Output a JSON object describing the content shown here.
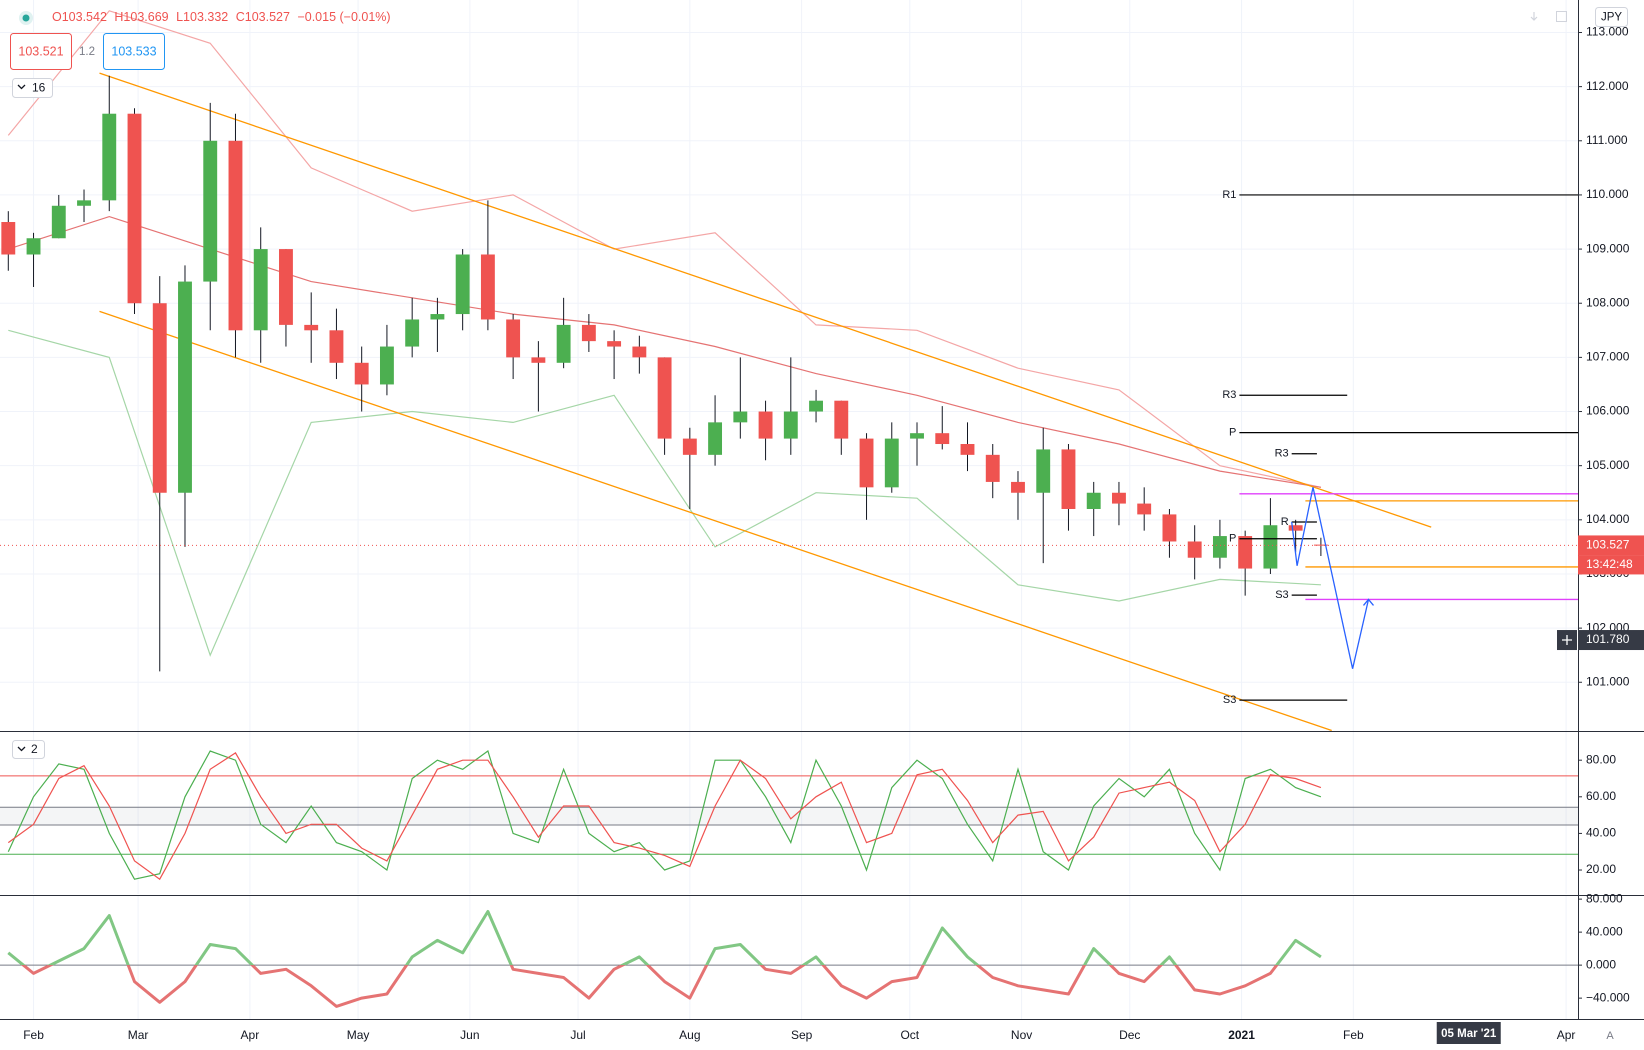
{
  "legend": {
    "open": "O103.542",
    "high": "H103.669",
    "low": "L103.332",
    "close": "C103.527",
    "change": "−0.015 (−0.01%)"
  },
  "sell_price": "103.521",
  "spread": "1.2",
  "buy_price": "103.533",
  "currency": "JPY",
  "scale_mode": "A",
  "chart_data": [
    {
      "type": "candlestick",
      "indicator_count": 16,
      "up_color": "#4caf50",
      "down_color": "#ef5350",
      "x": [
        24,
        31,
        38,
        45,
        52,
        59,
        66,
        73,
        80,
        87,
        94,
        101,
        108,
        115,
        122,
        129,
        136,
        143,
        150,
        157,
        164,
        171,
        178,
        185,
        192,
        199,
        206,
        213,
        220,
        227,
        234,
        241,
        248,
        255,
        262,
        269,
        276,
        283,
        290,
        297,
        304,
        311,
        318,
        325,
        332,
        339,
        346,
        353,
        360,
        367,
        374,
        381,
        388
      ],
      "open": [
        109.5,
        108.9,
        109.2,
        109.8,
        109.9,
        111.5,
        108.0,
        104.5,
        108.4,
        111.0,
        107.5,
        109.0,
        107.6,
        107.5,
        106.9,
        106.5,
        107.2,
        107.7,
        107.8,
        108.9,
        107.7,
        107.0,
        106.9,
        107.6,
        107.3,
        107.2,
        107.0,
        105.5,
        105.2,
        105.8,
        106.0,
        105.5,
        106.0,
        106.2,
        105.5,
        104.6,
        105.5,
        105.6,
        105.4,
        105.2,
        104.7,
        104.5,
        105.3,
        104.2,
        104.5,
        104.3,
        104.1,
        103.6,
        103.3,
        103.7,
        103.1,
        103.9,
        103.542
      ],
      "high": [
        109.7,
        109.3,
        110.0,
        110.1,
        112.2,
        111.6,
        108.5,
        108.7,
        111.7,
        111.5,
        109.4,
        109.0,
        108.2,
        107.9,
        107.2,
        107.6,
        108.1,
        108.1,
        109.0,
        109.9,
        107.8,
        107.3,
        108.1,
        107.8,
        107.5,
        107.4,
        107.0,
        105.7,
        106.3,
        107.0,
        106.2,
        107.0,
        106.4,
        106.2,
        105.6,
        105.8,
        105.8,
        106.1,
        105.8,
        105.4,
        104.9,
        105.7,
        105.4,
        104.7,
        104.7,
        104.6,
        104.2,
        103.9,
        104.0,
        103.8,
        104.4,
        104.0,
        103.669
      ],
      "low": [
        108.6,
        108.3,
        109.2,
        109.5,
        109.7,
        107.8,
        101.2,
        103.5,
        107.5,
        107.0,
        106.9,
        107.2,
        106.9,
        106.6,
        106.0,
        106.3,
        107.0,
        107.1,
        107.5,
        107.5,
        106.6,
        106.0,
        106.8,
        107.1,
        106.6,
        106.7,
        105.2,
        104.2,
        105.0,
        105.5,
        105.1,
        105.2,
        105.8,
        105.2,
        104.0,
        104.5,
        105.0,
        105.3,
        104.9,
        104.4,
        104.0,
        103.2,
        103.8,
        103.7,
        103.9,
        103.8,
        103.3,
        102.9,
        103.1,
        102.6,
        103.0,
        103.4,
        103.332
      ],
      "close": [
        108.9,
        109.2,
        109.8,
        109.9,
        111.5,
        108.0,
        104.5,
        108.4,
        111.0,
        107.5,
        109.0,
        107.6,
        107.5,
        106.9,
        106.5,
        107.2,
        107.7,
        107.8,
        108.9,
        107.7,
        107.0,
        106.9,
        107.6,
        107.3,
        107.2,
        107.0,
        105.5,
        105.2,
        105.8,
        106.0,
        105.5,
        106.0,
        106.2,
        105.5,
        104.6,
        105.5,
        105.6,
        105.4,
        105.2,
        104.7,
        104.5,
        105.3,
        104.2,
        104.5,
        104.3,
        104.1,
        103.6,
        103.3,
        103.7,
        103.1,
        103.9,
        103.8,
        103.527
      ],
      "xlim": [
        21.7,
        459.3
      ],
      "xticks": [
        {
          "value": 31,
          "label": "Feb"
        },
        {
          "value": 60,
          "label": "Mar"
        },
        {
          "value": 91,
          "label": "Apr"
        },
        {
          "value": 121,
          "label": "May"
        },
        {
          "value": 152,
          "label": "Jun"
        },
        {
          "value": 182,
          "label": "Jul"
        },
        {
          "value": 213,
          "label": "Aug"
        },
        {
          "value": 244,
          "label": "Sep"
        },
        {
          "value": 274,
          "label": "Oct"
        },
        {
          "value": 305,
          "label": "Nov"
        },
        {
          "value": 335,
          "label": "Dec"
        },
        {
          "value": 366,
          "label": "2021"
        },
        {
          "value": 397,
          "label": "Feb"
        },
        {
          "value": 456,
          "label": "Apr"
        }
      ],
      "highlight_tick": {
        "value": 429,
        "label": "05 Mar '21"
      },
      "ylim": [
        100.1,
        113.6
      ],
      "yticks": [
        {
          "value": 101,
          "label": "101.000"
        },
        {
          "value": 102,
          "label": "102.000"
        },
        {
          "value": 103,
          "label": "103.000"
        },
        {
          "value": 104,
          "label": "104.000"
        },
        {
          "value": 105,
          "label": "105.000"
        },
        {
          "value": 106,
          "label": "106.000"
        },
        {
          "value": 107,
          "label": "107.000"
        },
        {
          "value": 108,
          "label": "108.000"
        },
        {
          "value": 109,
          "label": "109.000"
        },
        {
          "value": 110,
          "label": "110.000"
        },
        {
          "value": 111,
          "label": "111.000"
        },
        {
          "value": 112,
          "label": "112.000"
        },
        {
          "value": 113,
          "label": "113.000"
        }
      ],
      "grid": true,
      "overlays": [
        {
          "color": "#f4a6a6",
          "x": [
            24,
            52,
            80,
            108,
            136,
            164,
            192,
            220,
            248,
            276,
            304,
            332,
            360,
            388
          ],
          "values": [
            111.1,
            113.4,
            112.8,
            110.5,
            109.7,
            110.0,
            109.0,
            109.3,
            107.6,
            107.5,
            106.8,
            106.4,
            105.0,
            104.6
          ]
        },
        {
          "color": "#e57373",
          "x": [
            24,
            52,
            80,
            108,
            136,
            164,
            192,
            220,
            248,
            276,
            304,
            332,
            360,
            388
          ],
          "values": [
            109.0,
            109.6,
            109.0,
            108.4,
            108.1,
            107.8,
            107.6,
            107.2,
            106.7,
            106.3,
            105.8,
            105.4,
            104.9,
            104.6
          ]
        },
        {
          "color": "#a5d6a7",
          "x": [
            24,
            52,
            80,
            108,
            136,
            164,
            192,
            220,
            248,
            276,
            304,
            332,
            360,
            388
          ],
          "values": [
            107.5,
            107.0,
            101.5,
            105.8,
            106.0,
            105.8,
            106.3,
            103.5,
            104.5,
            104.4,
            102.8,
            102.5,
            102.9,
            102.8
          ]
        }
      ],
      "channel_color": "#ff9800",
      "channel": [
        {
          "x": [
            49.3,
            418.6
          ],
          "values": [
            112.25,
            103.865
          ]
        },
        {
          "x": [
            49.3,
            391.0
          ],
          "values": [
            107.85,
            100.11
          ]
        }
      ],
      "level_color": "#000000",
      "levels": [
        {
          "label": "R1",
          "value": 110.0,
          "x": [
            365.4,
            459.3
          ]
        },
        {
          "label": "R3",
          "value": 106.3,
          "x": [
            365.4,
            395.3
          ]
        },
        {
          "label": "P",
          "value": 105.61,
          "x": [
            365.4,
            459.3
          ]
        },
        {
          "label": "R3",
          "value": 105.22,
          "x": [
            379.9,
            386.9
          ]
        },
        {
          "label": "R",
          "value": 103.96,
          "x": [
            379.9,
            386.9
          ]
        },
        {
          "label": "P",
          "value": 103.65,
          "x": [
            365.4,
            386.9
          ]
        },
        {
          "label": "S3",
          "value": 102.61,
          "x": [
            379.9,
            386.9
          ]
        },
        {
          "label": "S3",
          "value": 100.67,
          "x": [
            365.4,
            395.3
          ]
        }
      ],
      "zones": [
        {
          "color": "#e040fb",
          "value": 104.48,
          "x": [
            365.4,
            459.3
          ]
        },
        {
          "color": "#ff9800",
          "value": 104.35,
          "x": [
            383.7,
            459.3
          ]
        },
        {
          "color": "#ff9800",
          "value": 103.13,
          "x": [
            383.7,
            459.3
          ]
        },
        {
          "color": "#e040fb",
          "value": 102.53,
          "x": [
            383.7,
            459.3
          ]
        }
      ],
      "projection": {
        "color": "#2962ff",
        "x": [
          379.9,
          381.4,
          385.8,
          396.8,
          401.2
        ],
        "values": [
          103.96,
          103.15,
          104.6,
          101.25,
          102.53
        ]
      },
      "last_price": 103.527,
      "last_price_color": "#ef5350",
      "countdown": "13:42:48",
      "crosshair_price": {
        "value": 101.78,
        "label": "101.780"
      }
    },
    {
      "type": "line",
      "indicator_count": 2,
      "x": [
        24,
        31,
        38,
        45,
        52,
        59,
        66,
        73,
        80,
        87,
        94,
        101,
        108,
        115,
        122,
        129,
        136,
        143,
        150,
        157,
        164,
        171,
        178,
        185,
        192,
        199,
        206,
        213,
        220,
        227,
        234,
        241,
        248,
        255,
        262,
        269,
        276,
        283,
        290,
        297,
        304,
        311,
        318,
        325,
        332,
        339,
        346,
        353,
        360,
        367,
        374,
        381,
        388
      ],
      "xlim": [
        21.7,
        459.3
      ],
      "ylim": [
        6.9,
        95.4
      ],
      "yticks": [
        {
          "value": 20,
          "label": "20.00"
        },
        {
          "value": 40,
          "label": "40.00"
        },
        {
          "value": 60,
          "label": "60.00"
        },
        {
          "value": 80,
          "label": "80.00"
        }
      ],
      "levels": [
        {
          "value": 71.4,
          "color": "#ef5350"
        },
        {
          "value": 54.3,
          "color": "#787b86"
        },
        {
          "value": 44.6,
          "color": "#787b86"
        },
        {
          "value": 28.6,
          "color": "#4caf50"
        }
      ],
      "series": [
        {
          "color": "#4caf50",
          "values": [
            30,
            60,
            78,
            75,
            40,
            15,
            18,
            60,
            85,
            80,
            45,
            35,
            55,
            35,
            30,
            20,
            70,
            80,
            75,
            85,
            40,
            35,
            75,
            40,
            30,
            35,
            20,
            25,
            80,
            80,
            60,
            35,
            80,
            55,
            20,
            65,
            80,
            70,
            45,
            25,
            75,
            30,
            20,
            55,
            70,
            60,
            75,
            40,
            20,
            70,
            75,
            65,
            60
          ]
        },
        {
          "color": "#ef5350",
          "values": [
            35,
            45,
            70,
            77,
            55,
            25,
            15,
            40,
            75,
            84,
            60,
            40,
            45,
            45,
            32,
            25,
            50,
            75,
            80,
            80,
            60,
            38,
            55,
            55,
            35,
            32,
            28,
            22,
            55,
            80,
            70,
            48,
            60,
            68,
            35,
            40,
            72,
            75,
            58,
            35,
            50,
            52,
            25,
            38,
            62,
            65,
            68,
            58,
            30,
            45,
            72,
            70,
            65
          ]
        }
      ]
    },
    {
      "type": "oscillator",
      "x": [
        24,
        31,
        38,
        45,
        52,
        59,
        66,
        73,
        80,
        87,
        94,
        101,
        108,
        115,
        122,
        129,
        136,
        143,
        150,
        157,
        164,
        171,
        178,
        185,
        192,
        199,
        206,
        213,
        220,
        227,
        234,
        241,
        248,
        255,
        262,
        269,
        276,
        283,
        290,
        297,
        304,
        311,
        318,
        325,
        332,
        339,
        346,
        353,
        360,
        367,
        374,
        381,
        388
      ],
      "xlim": [
        21.7,
        459.3
      ],
      "ylim": [
        -65.3,
        83.8
      ],
      "yticks": [
        {
          "value": -40,
          "label": "−40.000"
        },
        {
          "value": 0,
          "label": "0.000"
        },
        {
          "value": 40,
          "label": "40.000"
        },
        {
          "value": 80,
          "label": "80.000"
        }
      ],
      "up_color": "#81c784",
      "down_color": "#e57373",
      "values": [
        15,
        -10,
        5,
        20,
        60,
        -20,
        -45,
        -20,
        25,
        20,
        -10,
        -5,
        -25,
        -50,
        -40,
        -35,
        10,
        30,
        15,
        65,
        -5,
        -10,
        -15,
        -40,
        -5,
        10,
        -20,
        -40,
        20,
        25,
        -5,
        -10,
        10,
        -25,
        -40,
        -20,
        -15,
        45,
        10,
        -15,
        -25,
        -30,
        -35,
        20,
        -10,
        -20,
        10,
        -30,
        -35,
        -25,
        -10,
        30,
        10
      ]
    }
  ]
}
